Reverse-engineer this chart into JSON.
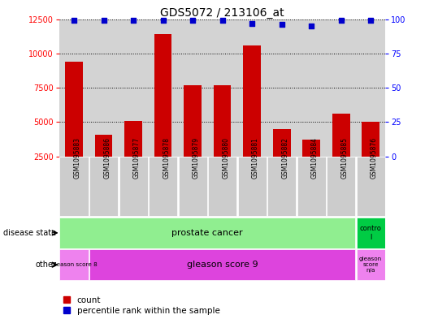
{
  "title": "GDS5072 / 213106_at",
  "samples": [
    "GSM1095883",
    "GSM1095886",
    "GSM1095877",
    "GSM1095878",
    "GSM1095879",
    "GSM1095880",
    "GSM1095881",
    "GSM1095882",
    "GSM1095884",
    "GSM1095885",
    "GSM1095876"
  ],
  "counts": [
    9400,
    4100,
    5100,
    11400,
    7700,
    7700,
    10600,
    4500,
    3700,
    5600,
    5000
  ],
  "percentile": [
    99,
    99,
    99,
    99,
    99,
    99,
    97,
    96,
    95,
    99,
    99
  ],
  "ylim_left": [
    2500,
    12500
  ],
  "ylim_right": [
    0,
    100
  ],
  "yticks_left": [
    2500,
    5000,
    7500,
    10000,
    12500
  ],
  "yticks_right": [
    0,
    25,
    50,
    75,
    100
  ],
  "bar_color": "#cc0000",
  "dot_color": "#0000cc",
  "bar_bottom": 2500,
  "bg_color": "#d3d3d3",
  "label_bg_color": "#cccccc",
  "disease_prostate_color": "#90ee90",
  "disease_control_color": "#00cc44",
  "gleason8_color": "#ee82ee",
  "gleason9_color": "#dd44dd",
  "gleasonNA_color": "#ee82ee",
  "row_label_disease": "disease state",
  "row_label_other": "other",
  "legend_count": "count",
  "legend_pct": "percentile rank within the sample"
}
